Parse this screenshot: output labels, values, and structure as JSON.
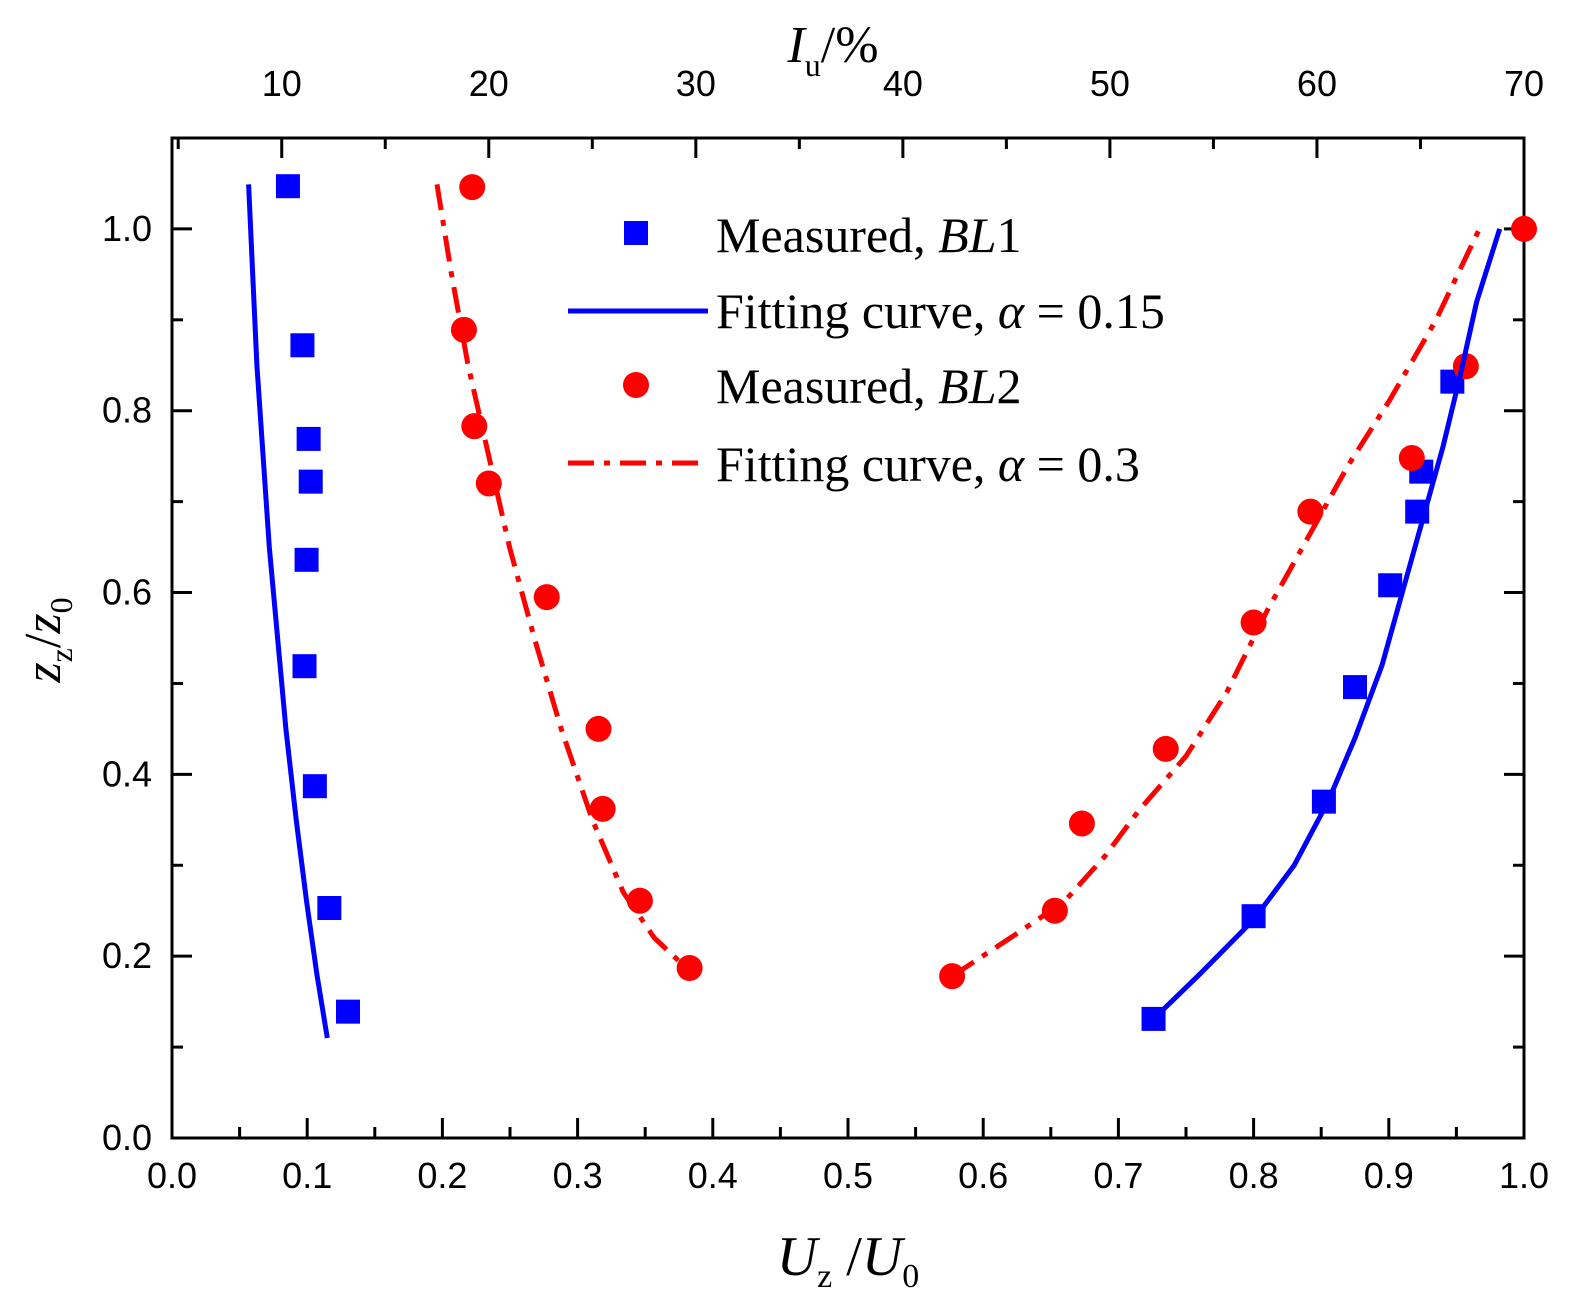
{
  "chart_data": {
    "type": "scatter",
    "x_bottom": {
      "label_main": "U",
      "label_sub": "z",
      "label_sep": " /",
      "label_main2": "U",
      "label_sub2": "0",
      "range": [
        0.0,
        1.0
      ],
      "ticks": [
        "0.0",
        "0.1",
        "0.2",
        "0.3",
        "0.4",
        "0.5",
        "0.6",
        "0.7",
        "0.8",
        "0.9",
        "1.0"
      ]
    },
    "x_top": {
      "label_main": "I",
      "label_sub": "u",
      "label_rest": "/%",
      "range": [
        4.7,
        70
      ],
      "ticks": [
        "10",
        "20",
        "30",
        "40",
        "50",
        "60",
        "70"
      ]
    },
    "y": {
      "label_main": "z",
      "label_sub": "z",
      "label_sep": "/",
      "label_main2": "z",
      "label_sub2": "0",
      "range": [
        0.0,
        1.1
      ],
      "ticks": [
        "0.0",
        "0.2",
        "0.4",
        "0.6",
        "0.8",
        "1.0"
      ]
    },
    "legend": [
      {
        "text": "Measured, ",
        "italic": "BL",
        "tail": "1",
        "series": "measured-bl1"
      },
      {
        "text": "Fitting curve,  ",
        "italic": "α",
        "tail": " = 0.15",
        "series": "fit-015"
      },
      {
        "text": "Measured, ",
        "italic": "BL",
        "tail": "2",
        "series": "measured-bl2"
      },
      {
        "text": "Fitting curve,  ",
        "italic": "α",
        "tail": " = 0.3",
        "series": "fit-03"
      }
    ],
    "colors": {
      "blue": "#0000ff",
      "red": "#ff0000"
    },
    "series": [
      {
        "name": "Measured, BL1 (Uz/U0)",
        "marker": "square",
        "color": "#0000ff",
        "axis": "bottom",
        "points": [
          [
            0.726,
            0.131
          ],
          [
            0.8,
            0.244
          ],
          [
            0.852,
            0.37
          ],
          [
            0.875,
            0.496
          ],
          [
            0.901,
            0.608
          ],
          [
            0.921,
            0.689
          ],
          [
            0.924,
            0.733
          ],
          [
            0.947,
            0.832
          ]
        ]
      },
      {
        "name": "Measured, BL1 (Iu)",
        "marker": "square",
        "color": "#0000ff",
        "axis": "top",
        "points": [
          [
            13.2,
            0.139
          ],
          [
            12.3,
            0.253
          ],
          [
            11.6,
            0.387
          ],
          [
            11.1,
            0.519
          ],
          [
            11.2,
            0.636
          ],
          [
            11.4,
            0.722
          ],
          [
            11.3,
            0.769
          ],
          [
            11.0,
            0.872
          ],
          [
            10.3,
            1.047
          ]
        ]
      },
      {
        "name": "Measured, BL2 (Uz/U0)",
        "marker": "circle",
        "color": "#ff0000",
        "axis": "bottom",
        "points": [
          [
            0.577,
            0.178
          ],
          [
            0.653,
            0.25
          ],
          [
            0.673,
            0.346
          ],
          [
            0.735,
            0.428
          ],
          [
            0.8,
            0.567
          ],
          [
            0.842,
            0.689
          ],
          [
            0.917,
            0.748
          ],
          [
            0.957,
            0.849
          ],
          [
            1.0,
            1.0
          ]
        ]
      },
      {
        "name": "Measured, BL2 (Iu)",
        "marker": "circle",
        "color": "#ff0000",
        "axis": "top",
        "points": [
          [
            29.7,
            0.187
          ],
          [
            27.3,
            0.261
          ],
          [
            25.5,
            0.362
          ],
          [
            25.3,
            0.45
          ],
          [
            22.8,
            0.595
          ],
          [
            20.0,
            0.72
          ],
          [
            19.3,
            0.783
          ],
          [
            18.8,
            0.889
          ],
          [
            19.2,
            1.046
          ]
        ]
      },
      {
        "name": "Fitting curve, α = 0.15 (Uz/U0)",
        "style": "solid",
        "color": "#0000ff",
        "axis": "bottom",
        "points": [
          [
            0.726,
            0.131
          ],
          [
            0.76,
            0.18
          ],
          [
            0.8,
            0.24
          ],
          [
            0.83,
            0.3
          ],
          [
            0.855,
            0.37
          ],
          [
            0.875,
            0.44
          ],
          [
            0.895,
            0.52
          ],
          [
            0.91,
            0.6
          ],
          [
            0.925,
            0.68
          ],
          [
            0.94,
            0.76
          ],
          [
            0.953,
            0.84
          ],
          [
            0.965,
            0.92
          ],
          [
            0.982,
            1.0
          ]
        ]
      },
      {
        "name": "Fitting curve, α = 0.15 (Iu)",
        "style": "solid",
        "color": "#0000ff",
        "axis": "top",
        "points": [
          [
            8.4,
            1.049
          ],
          [
            8.6,
            0.95
          ],
          [
            8.8,
            0.85
          ],
          [
            9.1,
            0.75
          ],
          [
            9.4,
            0.65
          ],
          [
            9.8,
            0.55
          ],
          [
            10.2,
            0.45
          ],
          [
            10.7,
            0.35
          ],
          [
            11.2,
            0.26
          ],
          [
            11.7,
            0.18
          ],
          [
            12.2,
            0.11
          ]
        ]
      },
      {
        "name": "Fitting curve, α = 0.3 (Uz/U0)",
        "style": "dashdot",
        "color": "#ff0000",
        "axis": "bottom",
        "points": [
          [
            0.577,
            0.178
          ],
          [
            0.62,
            0.22
          ],
          [
            0.66,
            0.26
          ],
          [
            0.69,
            0.31
          ],
          [
            0.715,
            0.36
          ],
          [
            0.75,
            0.42
          ],
          [
            0.78,
            0.49
          ],
          [
            0.81,
            0.58
          ],
          [
            0.84,
            0.66
          ],
          [
            0.87,
            0.74
          ],
          [
            0.9,
            0.81
          ],
          [
            0.935,
            0.9
          ],
          [
            0.967,
            1.0
          ]
        ]
      },
      {
        "name": "Fitting curve, α = 0.3 (Iu)",
        "style": "dashdot",
        "color": "#ff0000",
        "axis": "top",
        "points": [
          [
            17.5,
            1.049
          ],
          [
            18.2,
            0.95
          ],
          [
            19.0,
            0.85
          ],
          [
            20.0,
            0.75
          ],
          [
            21.0,
            0.65
          ],
          [
            22.2,
            0.55
          ],
          [
            23.5,
            0.45
          ],
          [
            25.0,
            0.35
          ],
          [
            26.5,
            0.27
          ],
          [
            28.0,
            0.22
          ],
          [
            29.4,
            0.19
          ]
        ]
      }
    ]
  }
}
